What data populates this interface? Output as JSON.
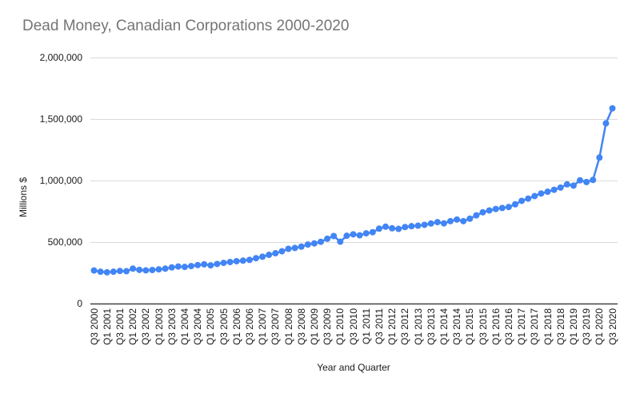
{
  "chart_data": {
    "type": "line",
    "title": "Dead Money, Canadian Corporations 2000-2020",
    "xlabel": "Year and Quarter",
    "ylabel": "Millions $",
    "legend": false,
    "grid": "horizontal",
    "ylim": [
      0,
      2000000
    ],
    "y_ticks": [
      0,
      500000,
      1000000,
      1500000,
      2000000
    ],
    "y_tick_labels": [
      "0",
      "500,000",
      "1,000,000",
      "1,500,000",
      "2,000,000"
    ],
    "x_tick_every": 2,
    "line_color": "#4285f4",
    "point_color": "#4285f4",
    "x": [
      "Q3 2000",
      "Q4 2000",
      "Q1 2001",
      "Q2 2001",
      "Q3 2001",
      "Q4 2001",
      "Q1 2002",
      "Q2 2002",
      "Q3 2002",
      "Q4 2002",
      "Q1 2003",
      "Q2 2003",
      "Q3 2003",
      "Q4 2003",
      "Q1 2004",
      "Q2 2004",
      "Q3 2004",
      "Q4 2004",
      "Q1 2005",
      "Q2 2005",
      "Q3 2005",
      "Q4 2005",
      "Q1 2006",
      "Q2 2006",
      "Q3 2006",
      "Q4 2006",
      "Q1 2007",
      "Q2 2007",
      "Q3 2007",
      "Q4 2007",
      "Q1 2008",
      "Q2 2008",
      "Q3 2008",
      "Q4 2008",
      "Q1 2009",
      "Q2 2009",
      "Q3 2009",
      "Q4 2009",
      "Q1 2010",
      "Q2 2010",
      "Q3 2010",
      "Q4 2010",
      "Q1 2011",
      "Q2 2011",
      "Q3 2011",
      "Q4 2011",
      "Q1 2012",
      "Q2 2012",
      "Q3 2012",
      "Q4 2012",
      "Q1 2013",
      "Q2 2013",
      "Q3 2013",
      "Q4 2013",
      "Q1 2014",
      "Q2 2014",
      "Q3 2014",
      "Q4 2014",
      "Q1 2015",
      "Q2 2015",
      "Q3 2015",
      "Q4 2015",
      "Q1 2016",
      "Q2 2016",
      "Q3 2016",
      "Q4 2016",
      "Q1 2017",
      "Q2 2017",
      "Q3 2017",
      "Q4 2017",
      "Q1 2018",
      "Q2 2018",
      "Q3 2018",
      "Q4 2018",
      "Q1 2019",
      "Q2 2019",
      "Q3 2019",
      "Q4 2019",
      "Q1 2020",
      "Q2 2020",
      "Q3 2020"
    ],
    "values": [
      272000,
      262000,
      257000,
      262000,
      268000,
      266000,
      287000,
      277000,
      273000,
      276000,
      281000,
      287000,
      297000,
      304000,
      301000,
      308000,
      316000,
      322000,
      314000,
      325000,
      334000,
      341000,
      347000,
      352000,
      358000,
      372000,
      384000,
      399000,
      412000,
      428000,
      448000,
      455000,
      466000,
      483000,
      492000,
      505000,
      530000,
      552000,
      506000,
      554000,
      566000,
      558000,
      574000,
      583000,
      612000,
      628000,
      615000,
      610000,
      625000,
      632000,
      636000,
      643000,
      654000,
      665000,
      655000,
      673000,
      686000,
      673000,
      693000,
      720000,
      745000,
      760000,
      772000,
      780000,
      788000,
      810000,
      838000,
      856000,
      877000,
      898000,
      912000,
      928000,
      946000,
      972000,
      962000,
      1005000,
      991000,
      1008000,
      1190000,
      1468000,
      1590000
    ]
  },
  "colors": {
    "background": "#ffffff",
    "title_text": "#757575",
    "axis_text": "#1a1a1a",
    "gridline": "#dadada",
    "axis_line": "#424242",
    "series_blue": "#4285f4"
  }
}
